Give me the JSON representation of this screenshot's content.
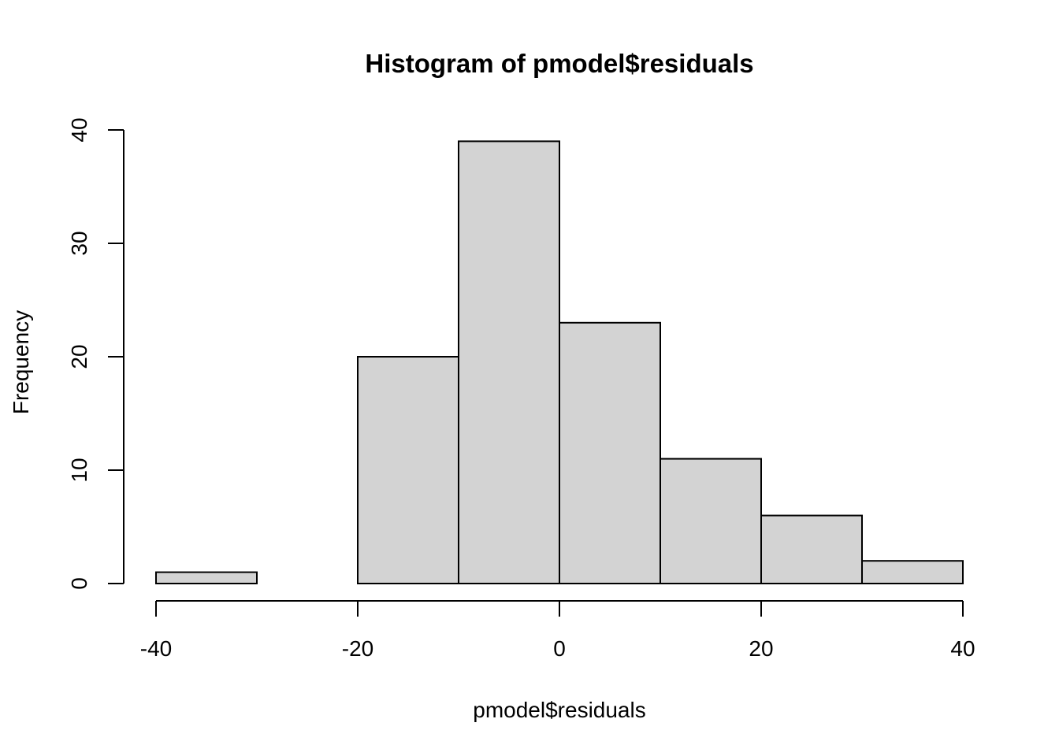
{
  "chart_data": {
    "type": "bar",
    "title": "Histogram of pmodel$residuals",
    "xlabel": "pmodel$residuals",
    "ylabel": "Frequency",
    "bins": [
      {
        "start": -40,
        "end": -30,
        "count": 1
      },
      {
        "start": -30,
        "end": -20,
        "count": 0
      },
      {
        "start": -20,
        "end": -10,
        "count": 20
      },
      {
        "start": -10,
        "end": 0,
        "count": 39
      },
      {
        "start": 0,
        "end": 10,
        "count": 23
      },
      {
        "start": 10,
        "end": 20,
        "count": 11
      },
      {
        "start": 20,
        "end": 30,
        "count": 6
      },
      {
        "start": 30,
        "end": 40,
        "count": 2
      }
    ],
    "xlim": [
      -40,
      40
    ],
    "ylim": [
      0,
      40
    ],
    "x_ticks": [
      -40,
      -20,
      0,
      20,
      40
    ],
    "x_tick_labels": [
      "-40",
      "-20",
      "0",
      "20",
      "40"
    ],
    "y_ticks": [
      0,
      10,
      20,
      30,
      40
    ],
    "y_tick_labels": [
      "0",
      "10",
      "20",
      "30",
      "40"
    ],
    "bar_fill": "#d3d3d3",
    "bar_stroke": "#000000",
    "grid": false
  }
}
